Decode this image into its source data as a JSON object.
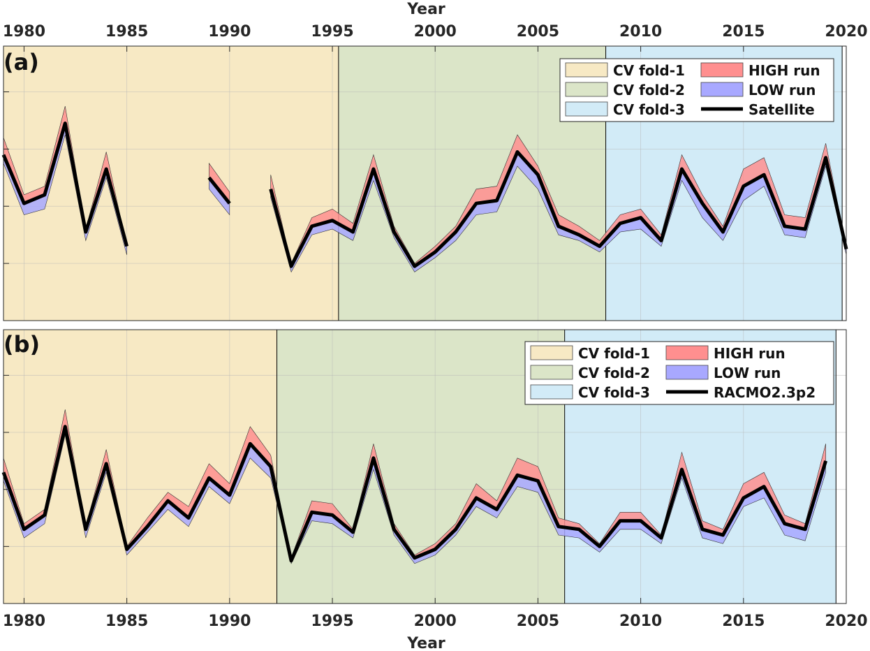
{
  "chart_data": [
    {
      "type": "line",
      "panel_label": "(a)",
      "xlabel": "Year",
      "xlabel_position": "top",
      "xticks": [
        1980,
        1985,
        1990,
        1995,
        2000,
        2005,
        2010,
        2015,
        2020
      ],
      "xlim": [
        1979,
        2020
      ],
      "ylim": [
        0,
        4.8
      ],
      "ytick_values": [
        1,
        2,
        3,
        4
      ],
      "y_tick_labels_shown": false,
      "grid": true,
      "legend_position": "top-right",
      "folds": [
        {
          "name": "CV fold-1",
          "start": 1979,
          "end": 1995.3,
          "color": "#f7e9c4"
        },
        {
          "name": "CV fold-2",
          "start": 1995.3,
          "end": 2008.3,
          "color": "#dbe5c8"
        },
        {
          "name": "CV fold-3",
          "start": 2008.3,
          "end": 2019.8,
          "color": "#d2ebf7"
        }
      ],
      "series": [
        {
          "name": "Satellite",
          "color": "#000000",
          "role": "line"
        },
        {
          "name": "HIGH run",
          "color": "#ff8f8f",
          "role": "band"
        },
        {
          "name": "LOW run",
          "color": "#a8a8ff",
          "role": "band"
        }
      ],
      "segments": [
        {
          "x": [
            1979,
            1980,
            1981,
            1982,
            1983,
            1984,
            1985
          ],
          "y": [
            2.9,
            2.05,
            2.2,
            3.45,
            1.55,
            2.65,
            1.3
          ],
          "high": [
            3.2,
            2.2,
            2.35,
            3.75,
            1.6,
            2.95,
            1.3
          ],
          "low": [
            2.75,
            1.85,
            1.95,
            3.25,
            1.4,
            2.5,
            1.15
          ]
        },
        {
          "x": [
            1989,
            1990
          ],
          "y": [
            2.5,
            2.05
          ],
          "high": [
            2.75,
            2.25
          ],
          "low": [
            2.3,
            1.85
          ]
        },
        {
          "x": [
            1992,
            1993,
            1994,
            1995,
            1996,
            1997,
            1998,
            1999,
            2000,
            2001,
            2002,
            2003,
            2004,
            2005,
            2006,
            2007,
            2008,
            2009,
            2010,
            2011,
            2012,
            2013,
            2014,
            2015,
            2016,
            2017,
            2018,
            2019,
            2020
          ],
          "y": [
            2.3,
            0.95,
            1.65,
            1.75,
            1.55,
            2.65,
            1.55,
            0.95,
            1.2,
            1.55,
            2.05,
            2.1,
            2.95,
            2.55,
            1.65,
            1.5,
            1.3,
            1.7,
            1.8,
            1.4,
            2.65,
            2.05,
            1.55,
            2.35,
            2.55,
            1.65,
            1.6,
            2.85,
            1.25
          ],
          "high": [
            2.55,
            1.0,
            1.8,
            1.95,
            1.7,
            2.9,
            1.65,
            1.0,
            1.3,
            1.65,
            2.3,
            2.35,
            3.25,
            2.7,
            1.85,
            1.65,
            1.4,
            1.85,
            1.95,
            1.5,
            2.9,
            2.2,
            1.65,
            2.65,
            2.85,
            1.85,
            1.8,
            3.1,
            1.3
          ],
          "low": [
            2.15,
            0.85,
            1.5,
            1.6,
            1.4,
            2.45,
            1.45,
            0.85,
            1.1,
            1.4,
            1.85,
            1.9,
            2.7,
            2.3,
            1.5,
            1.4,
            1.2,
            1.55,
            1.6,
            1.3,
            2.45,
            1.8,
            1.4,
            2.1,
            2.35,
            1.5,
            1.45,
            2.7,
            1.15
          ]
        }
      ]
    },
    {
      "type": "line",
      "panel_label": "(b)",
      "xlabel": "Year",
      "xlabel_position": "bottom",
      "xticks": [
        1980,
        1985,
        1990,
        1995,
        2000,
        2005,
        2010,
        2015,
        2020
      ],
      "xlim": [
        1979,
        2020
      ],
      "ylim": [
        0,
        4.8
      ],
      "ytick_values": [
        1,
        2,
        3,
        4
      ],
      "y_tick_labels_shown": false,
      "grid": true,
      "legend_position": "top-right",
      "folds": [
        {
          "name": "CV fold-1",
          "start": 1979,
          "end": 1992.3,
          "color": "#f7e9c4"
        },
        {
          "name": "CV fold-2",
          "start": 1992.3,
          "end": 2006.3,
          "color": "#dbe5c8"
        },
        {
          "name": "CV fold-3",
          "start": 2006.3,
          "end": 2019.5,
          "color": "#d2ebf7"
        }
      ],
      "series": [
        {
          "name": "RACMO2.3p2",
          "color": "#000000",
          "role": "line"
        },
        {
          "name": "HIGH run",
          "color": "#ff8f8f",
          "role": "band"
        },
        {
          "name": "LOW run",
          "color": "#a8a8ff",
          "role": "band"
        }
      ],
      "segments": [
        {
          "x": [
            1979,
            1980,
            1981,
            1982,
            1983,
            1984,
            1985,
            1986,
            1987,
            1988,
            1989,
            1990,
            1991,
            1992,
            1993,
            1994,
            1995,
            1996,
            1997,
            1998,
            1999,
            2000,
            2001,
            2002,
            2003,
            2004,
            2005,
            2006,
            2007,
            2008,
            2009,
            2010,
            2011,
            2012,
            2013,
            2014,
            2015,
            2016,
            2017,
            2018,
            2019
          ],
          "y": [
            2.3,
            1.3,
            1.55,
            3.1,
            1.3,
            2.45,
            0.95,
            1.35,
            1.8,
            1.5,
            2.2,
            1.9,
            2.8,
            2.4,
            0.75,
            1.6,
            1.55,
            1.25,
            2.55,
            1.3,
            0.8,
            0.95,
            1.3,
            1.85,
            1.65,
            2.25,
            2.15,
            1.35,
            1.3,
            1.0,
            1.45,
            1.45,
            1.15,
            2.35,
            1.3,
            1.2,
            1.85,
            2.05,
            1.4,
            1.3,
            2.5
          ],
          "high": [
            2.55,
            1.4,
            1.65,
            3.4,
            1.35,
            2.7,
            1.0,
            1.5,
            1.95,
            1.7,
            2.45,
            2.1,
            3.1,
            2.6,
            0.8,
            1.8,
            1.75,
            1.3,
            2.8,
            1.4,
            0.85,
            1.05,
            1.4,
            2.1,
            1.8,
            2.55,
            2.4,
            1.5,
            1.4,
            1.05,
            1.6,
            1.6,
            1.2,
            2.65,
            1.45,
            1.3,
            2.1,
            2.3,
            1.55,
            1.4,
            2.8
          ],
          "low": [
            2.15,
            1.15,
            1.4,
            2.95,
            1.15,
            2.3,
            0.85,
            1.25,
            1.65,
            1.35,
            2.05,
            1.75,
            2.55,
            2.2,
            0.7,
            1.45,
            1.4,
            1.15,
            2.35,
            1.2,
            0.7,
            0.85,
            1.2,
            1.7,
            1.5,
            2.05,
            1.95,
            1.2,
            1.15,
            0.9,
            1.3,
            1.3,
            1.05,
            2.2,
            1.15,
            1.05,
            1.7,
            1.85,
            1.2,
            1.1,
            2.3
          ]
        }
      ]
    }
  ]
}
